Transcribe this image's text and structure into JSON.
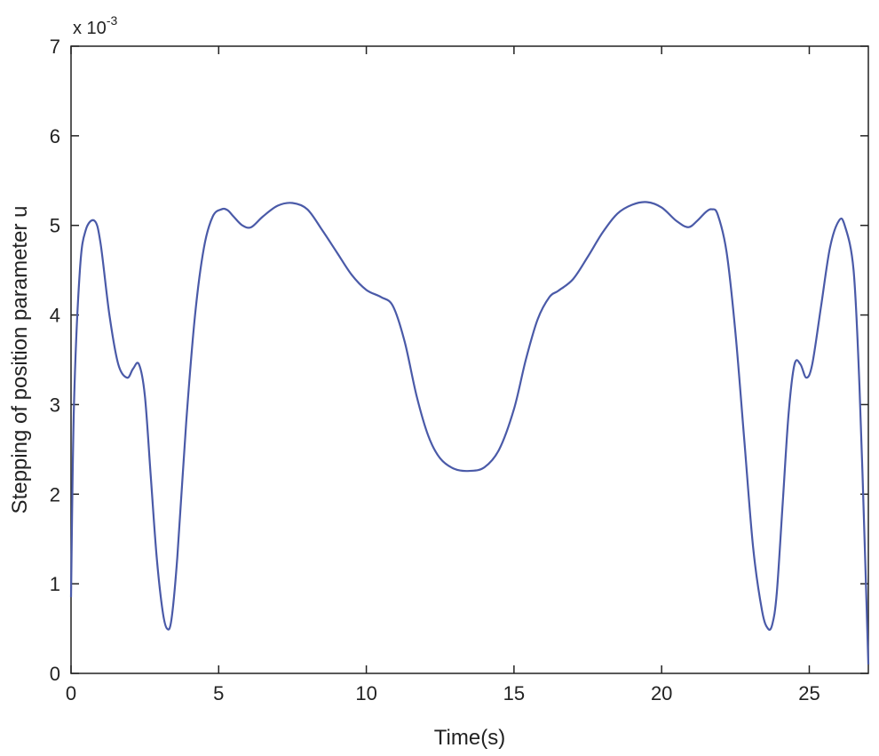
{
  "chart_data": {
    "type": "line",
    "xlabel": "Time(s)",
    "ylabel": "Stepping of position parameter u",
    "y_multiplier": {
      "base": "x 10",
      "exponent": "-3"
    },
    "xlim": [
      0,
      27
    ],
    "ylim": [
      0,
      7
    ],
    "x_ticks": [
      "0",
      "5",
      "10",
      "15",
      "20",
      "25"
    ],
    "y_ticks": [
      "0",
      "1",
      "2",
      "3",
      "4",
      "5",
      "6",
      "7"
    ],
    "grid": false,
    "line_color": "#4a5aa8",
    "series": [
      {
        "x": [
          0,
          0.1,
          0.3,
          0.5,
          0.8,
          1.0,
          1.3,
          1.6,
          1.9,
          2.1,
          2.3,
          2.5,
          2.7,
          2.9,
          3.1,
          3.25,
          3.4,
          3.6,
          3.9,
          4.2,
          4.5,
          4.8,
          5.1,
          5.3,
          5.5,
          5.8,
          6.1,
          6.5,
          7.0,
          7.5,
          8.0,
          8.5,
          9.0,
          9.5,
          10.0,
          10.5,
          10.9,
          11.3,
          11.7,
          12.1,
          12.5,
          13.0,
          13.5,
          14.0,
          14.5,
          15.0,
          15.4,
          15.8,
          16.2,
          16.5,
          17.0,
          17.5,
          18.0,
          18.5,
          19.0,
          19.5,
          20.0,
          20.5,
          20.9,
          21.2,
          21.5,
          21.7,
          21.9,
          22.2,
          22.5,
          22.8,
          23.1,
          23.4,
          23.6,
          23.75,
          23.9,
          24.1,
          24.3,
          24.5,
          24.7,
          24.9,
          25.1,
          25.4,
          25.7,
          26.0,
          26.2,
          26.5,
          26.7,
          26.9,
          27.0
        ],
        "y": [
          0.85,
          3.0,
          4.5,
          4.95,
          5.05,
          4.8,
          4.0,
          3.45,
          3.3,
          3.4,
          3.45,
          3.1,
          2.2,
          1.3,
          0.7,
          0.5,
          0.6,
          1.3,
          2.8,
          4.0,
          4.75,
          5.1,
          5.18,
          5.17,
          5.1,
          5.0,
          4.98,
          5.1,
          5.22,
          5.25,
          5.18,
          4.95,
          4.7,
          4.45,
          4.28,
          4.2,
          4.1,
          3.7,
          3.1,
          2.65,
          2.4,
          2.28,
          2.26,
          2.3,
          2.5,
          2.95,
          3.5,
          3.95,
          4.2,
          4.27,
          4.4,
          4.65,
          4.92,
          5.13,
          5.23,
          5.26,
          5.2,
          5.05,
          4.98,
          5.05,
          5.15,
          5.18,
          5.12,
          4.7,
          3.8,
          2.6,
          1.4,
          0.7,
          0.5,
          0.55,
          0.9,
          1.9,
          2.9,
          3.45,
          3.45,
          3.3,
          3.45,
          4.1,
          4.75,
          5.05,
          5.0,
          4.5,
          3.2,
          1.2,
          0.1
        ]
      }
    ]
  }
}
